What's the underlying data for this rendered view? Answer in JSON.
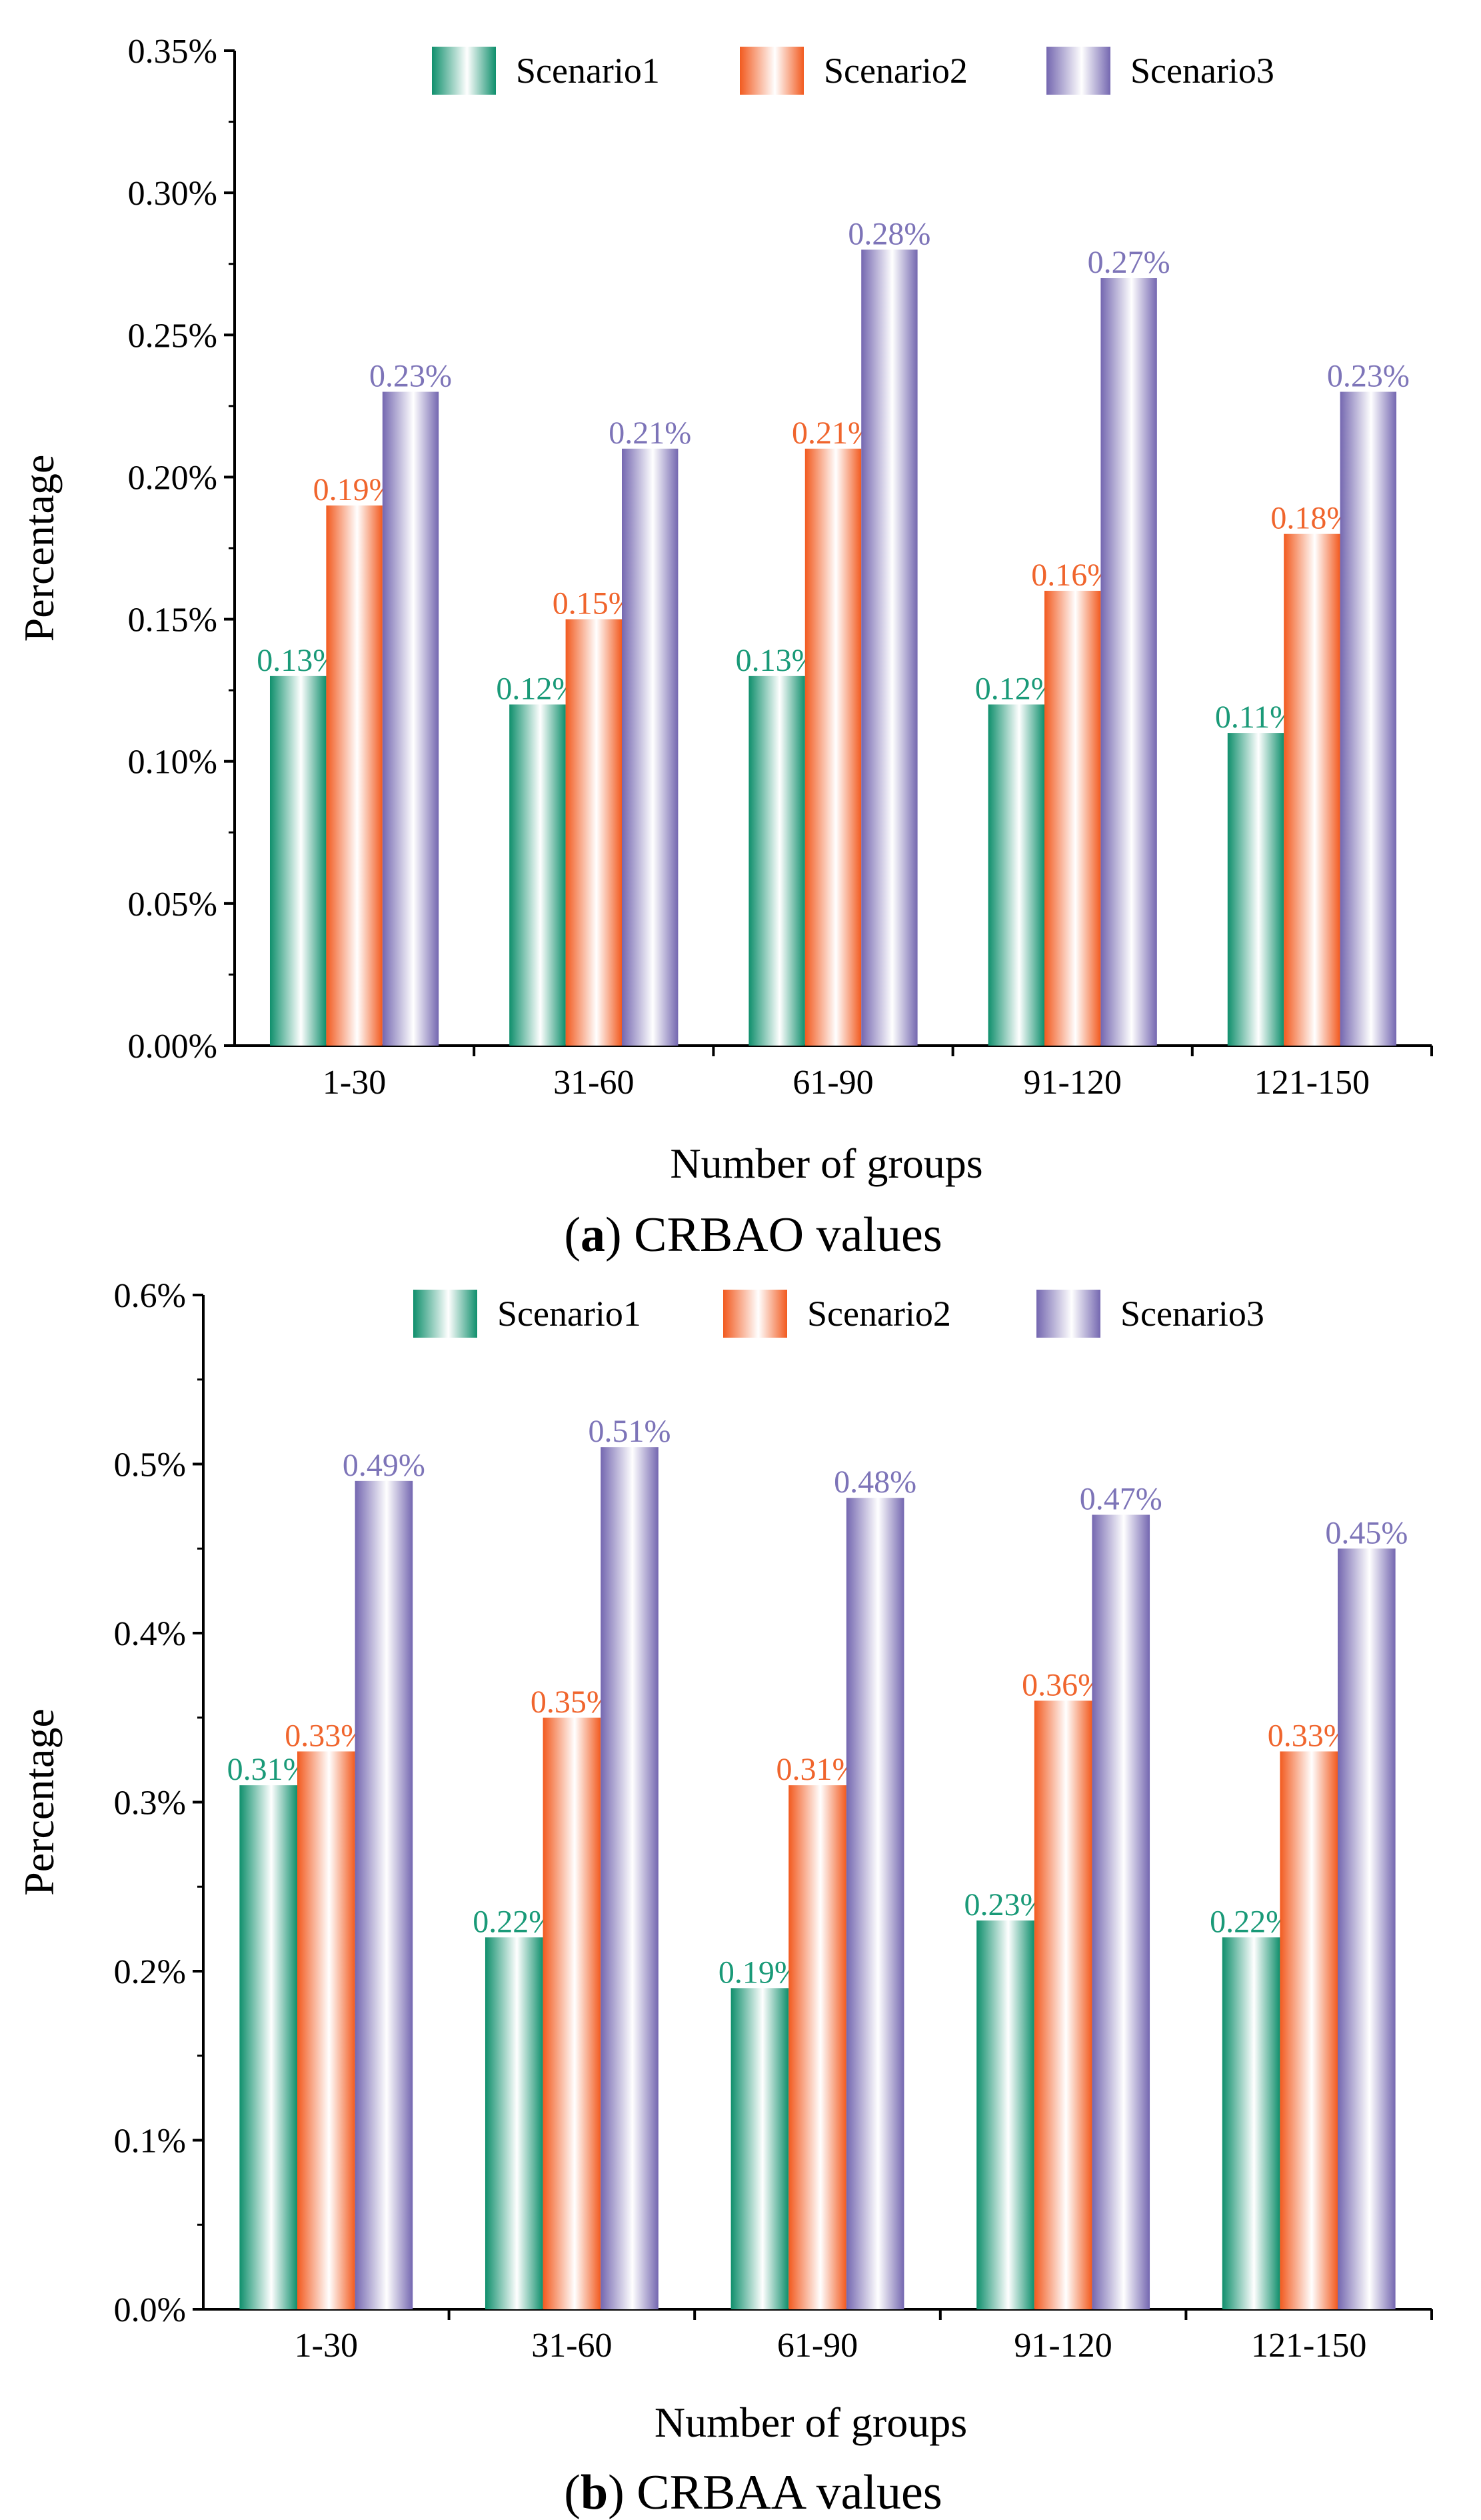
{
  "colors": {
    "Scenario1": "#1a9a78",
    "Scenario2": "#f0652d",
    "Scenario3": "#7d74b8"
  },
  "chart_data": [
    {
      "type": "bar",
      "caption_letter": "a",
      "caption_text": "CRBAO values",
      "xlabel": "Number of groups",
      "ylabel": "Percentage",
      "ylim": [
        0,
        0.35
      ],
      "yticks": [
        "0.00%",
        "0.05%",
        "0.10%",
        "0.15%",
        "0.20%",
        "0.25%",
        "0.30%",
        "0.35%"
      ],
      "categories": [
        "1-30",
        "31-60",
        "61-90",
        "91-120",
        "121-150"
      ],
      "legend_position": "top",
      "series": [
        {
          "name": "Scenario1",
          "values": [
            0.13,
            0.12,
            0.13,
            0.12,
            0.11
          ],
          "labels": [
            "0.13%",
            "0.12%",
            "0.13%",
            "0.12%",
            "0.11%"
          ]
        },
        {
          "name": "Scenario2",
          "values": [
            0.19,
            0.15,
            0.21,
            0.16,
            0.18
          ],
          "labels": [
            "0.19%",
            "0.15%",
            "0.21%",
            "0.16%",
            "0.18%"
          ]
        },
        {
          "name": "Scenario3",
          "values": [
            0.23,
            0.21,
            0.28,
            0.27,
            0.23
          ],
          "labels": [
            "0.23%",
            "0.21%",
            "0.28%",
            "0.27%",
            "0.23%"
          ]
        }
      ]
    },
    {
      "type": "bar",
      "caption_letter": "b",
      "caption_text": "CRBAA values",
      "xlabel": "Number of groups",
      "ylabel": "Percentage",
      "ylim": [
        0,
        0.6
      ],
      "yticks": [
        "0.0%",
        "0.1%",
        "0.2%",
        "0.3%",
        "0.4%",
        "0.5%",
        "0.6%"
      ],
      "categories": [
        "1-30",
        "31-60",
        "61-90",
        "91-120",
        "121-150"
      ],
      "legend_position": "top",
      "series": [
        {
          "name": "Scenario1",
          "values": [
            0.31,
            0.22,
            0.19,
            0.23,
            0.22
          ],
          "labels": [
            "0.31%",
            "0.22%",
            "0.19%",
            "0.23%",
            "0.22%"
          ]
        },
        {
          "name": "Scenario2",
          "values": [
            0.33,
            0.35,
            0.31,
            0.36,
            0.33
          ],
          "labels": [
            "0.33%",
            "0.35%",
            "0.31%",
            "0.36%",
            "0.33%"
          ]
        },
        {
          "name": "Scenario3",
          "values": [
            0.49,
            0.51,
            0.48,
            0.47,
            0.45
          ],
          "labels": [
            "0.49%",
            "0.51%",
            "0.48%",
            "0.47%",
            "0.45%"
          ]
        }
      ]
    }
  ]
}
